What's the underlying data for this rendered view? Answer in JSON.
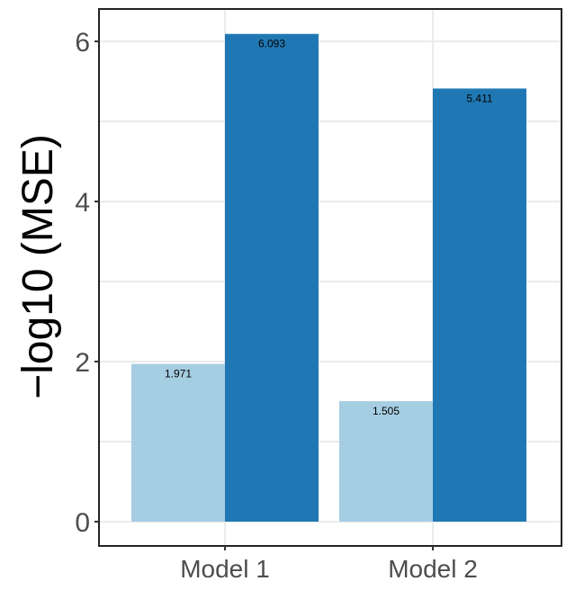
{
  "chart_data": {
    "type": "bar",
    "categories": [
      "Model 1",
      "Model 2"
    ],
    "series": [
      {
        "color": "#a6cee3",
        "values": [
          1.971,
          1.505
        ],
        "labels": [
          "1.971",
          "1.505"
        ]
      },
      {
        "color": "#1f78b4",
        "values": [
          6.093,
          5.411
        ],
        "labels": [
          "6.093",
          "5.411"
        ]
      }
    ],
    "ylabel": "−log10 (MSE)",
    "xlabel": "",
    "ylim": [
      0,
      6.4
    ],
    "yticks": [
      0,
      2,
      4,
      6
    ],
    "ytick_labels": [
      "0",
      "2",
      "4",
      "6"
    ],
    "grid": true,
    "legend": "none"
  }
}
